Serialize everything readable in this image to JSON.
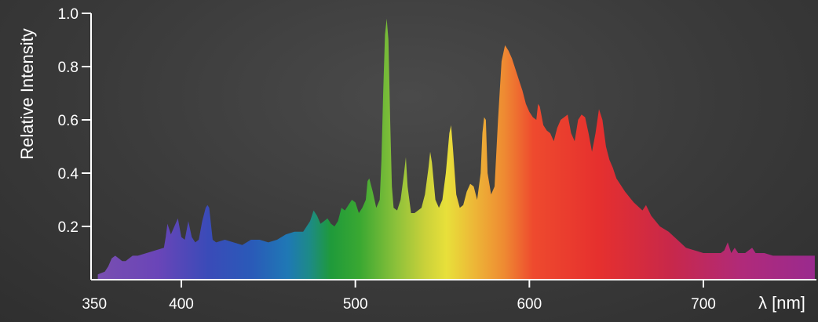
{
  "chart_data": {
    "type": "area",
    "title": "",
    "xlabel": "λ [nm]",
    "ylabel": "Relative Intensity",
    "xlim": [
      350,
      765
    ],
    "ylim": [
      0,
      1.0
    ],
    "x_ticks": [
      350,
      400,
      500,
      600,
      700
    ],
    "y_ticks": [
      0.2,
      0.4,
      0.6,
      0.8,
      1.0
    ],
    "y_tick_labels": [
      "0.2",
      "0.4",
      "0.6",
      "0.8",
      "1.0"
    ],
    "grid": false,
    "fill": "visible spectrum rainbow",
    "series": [
      {
        "x": [
          352,
          356,
          358,
          360,
          362,
          364,
          366,
          368,
          370,
          372,
          375,
          380,
          385,
          390,
          391,
          392,
          394,
          396,
          398,
          400,
          402,
          404,
          406,
          408,
          410,
          412,
          414,
          415,
          416,
          418,
          420,
          425,
          430,
          435,
          440,
          445,
          450,
          455,
          460,
          465,
          470,
          472,
          474,
          476,
          478,
          480,
          482,
          484,
          486,
          488,
          490,
          492,
          494,
          496,
          498,
          500,
          502,
          504,
          506,
          507,
          508,
          510,
          512,
          514,
          515,
          516,
          517,
          518,
          519,
          520,
          521,
          522,
          524,
          526,
          528,
          529,
          530,
          532,
          534,
          536,
          538,
          540,
          542,
          543,
          544,
          546,
          548,
          550,
          552,
          554,
          555,
          556,
          558,
          560,
          562,
          564,
          566,
          568,
          570,
          572,
          573,
          574,
          575,
          576,
          578,
          580,
          582,
          584,
          586,
          588,
          590,
          592,
          594,
          596,
          598,
          600,
          602,
          604,
          605,
          606,
          608,
          610,
          612,
          614,
          616,
          618,
          620,
          622,
          624,
          626,
          628,
          630,
          632,
          634,
          636,
          638,
          640,
          642,
          644,
          646,
          648,
          650,
          655,
          660,
          665,
          667,
          670,
          675,
          680,
          685,
          690,
          695,
          700,
          705,
          710,
          712,
          714,
          716,
          718,
          720,
          722,
          724,
          726,
          728,
          730,
          735,
          740,
          745,
          750,
          755,
          760,
          764
        ],
        "y": [
          0.02,
          0.03,
          0.05,
          0.08,
          0.09,
          0.08,
          0.07,
          0.07,
          0.08,
          0.09,
          0.09,
          0.1,
          0.11,
          0.12,
          0.16,
          0.21,
          0.17,
          0.2,
          0.23,
          0.16,
          0.15,
          0.22,
          0.16,
          0.14,
          0.15,
          0.22,
          0.27,
          0.28,
          0.27,
          0.15,
          0.14,
          0.15,
          0.14,
          0.13,
          0.15,
          0.15,
          0.14,
          0.15,
          0.17,
          0.18,
          0.18,
          0.2,
          0.22,
          0.26,
          0.24,
          0.21,
          0.22,
          0.23,
          0.21,
          0.2,
          0.22,
          0.27,
          0.26,
          0.28,
          0.3,
          0.29,
          0.25,
          0.27,
          0.3,
          0.37,
          0.38,
          0.33,
          0.27,
          0.3,
          0.45,
          0.7,
          0.92,
          0.98,
          0.9,
          0.6,
          0.35,
          0.27,
          0.26,
          0.3,
          0.4,
          0.46,
          0.35,
          0.25,
          0.25,
          0.26,
          0.27,
          0.32,
          0.42,
          0.48,
          0.44,
          0.3,
          0.27,
          0.3,
          0.4,
          0.55,
          0.58,
          0.5,
          0.32,
          0.27,
          0.28,
          0.33,
          0.36,
          0.35,
          0.3,
          0.4,
          0.55,
          0.61,
          0.6,
          0.4,
          0.32,
          0.35,
          0.6,
          0.82,
          0.88,
          0.86,
          0.83,
          0.79,
          0.75,
          0.71,
          0.66,
          0.63,
          0.61,
          0.6,
          0.66,
          0.65,
          0.58,
          0.56,
          0.55,
          0.52,
          0.57,
          0.6,
          0.61,
          0.62,
          0.55,
          0.52,
          0.6,
          0.62,
          0.61,
          0.55,
          0.48,
          0.55,
          0.64,
          0.6,
          0.5,
          0.45,
          0.42,
          0.38,
          0.33,
          0.29,
          0.26,
          0.28,
          0.24,
          0.2,
          0.18,
          0.15,
          0.12,
          0.11,
          0.1,
          0.1,
          0.1,
          0.11,
          0.14,
          0.1,
          0.12,
          0.1,
          0.1,
          0.1,
          0.11,
          0.12,
          0.1,
          0.1,
          0.09,
          0.09,
          0.09,
          0.09,
          0.09,
          0.09
        ]
      }
    ]
  }
}
